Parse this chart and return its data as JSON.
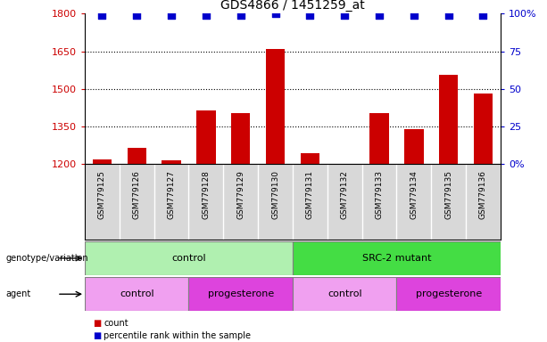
{
  "title": "GDS4866 / 1451259_at",
  "samples": [
    "GSM779125",
    "GSM779126",
    "GSM779127",
    "GSM779128",
    "GSM779129",
    "GSM779130",
    "GSM779131",
    "GSM779132",
    "GSM779133",
    "GSM779134",
    "GSM779135",
    "GSM779136"
  ],
  "counts": [
    1220,
    1265,
    1215,
    1415,
    1405,
    1660,
    1245,
    1200,
    1405,
    1340,
    1555,
    1480
  ],
  "percentile_ranks": [
    99,
    99,
    99,
    99,
    99,
    100,
    99,
    99,
    99,
    99,
    99,
    99
  ],
  "bar_color": "#cc0000",
  "dot_color": "#0000cc",
  "ylim_left": [
    1200,
    1800
  ],
  "ylim_right": [
    0,
    100
  ],
  "yticks_left": [
    1200,
    1350,
    1500,
    1650,
    1800
  ],
  "yticks_right": [
    0,
    25,
    50,
    75,
    100
  ],
  "ytick_labels_right": [
    "0%",
    "25",
    "50",
    "75",
    "100%"
  ],
  "grid_yticks": [
    1350,
    1500,
    1650
  ],
  "genotype_groups": [
    {
      "label": "control",
      "start": 0,
      "end": 6,
      "color": "#b0f0b0"
    },
    {
      "label": "SRC-2 mutant",
      "start": 6,
      "end": 12,
      "color": "#44dd44"
    }
  ],
  "agent_groups": [
    {
      "label": "control",
      "start": 0,
      "end": 3,
      "color": "#f0a0f0"
    },
    {
      "label": "progesterone",
      "start": 3,
      "end": 6,
      "color": "#dd44dd"
    },
    {
      "label": "control",
      "start": 6,
      "end": 9,
      "color": "#f0a0f0"
    },
    {
      "label": "progesterone",
      "start": 9,
      "end": 12,
      "color": "#dd44dd"
    }
  ],
  "legend_items": [
    {
      "label": "count",
      "color": "#cc0000"
    },
    {
      "label": "percentile rank within the sample",
      "color": "#0000cc"
    }
  ],
  "tick_label_color_left": "#cc0000",
  "tick_label_color_right": "#0000cc",
  "bar_width": 0.55,
  "dot_size": 40,
  "dot_marker": "s",
  "plot_area_bg": "#e8e8e8",
  "sample_bg": "#d8d8d8"
}
